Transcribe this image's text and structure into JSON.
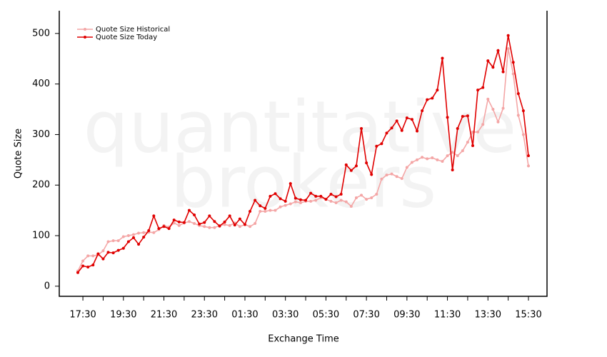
{
  "chart_data": {
    "type": "line",
    "watermark": [
      "quantitative",
      "brokers"
    ],
    "x_label": "Exchange Time",
    "y_label": "Quote Size",
    "categories": [
      null,
      "17:30",
      null,
      null,
      null,
      null,
      null,
      null,
      null,
      "19:30",
      null,
      null,
      null,
      null,
      null,
      null,
      null,
      "21:30",
      null,
      null,
      null,
      null,
      null,
      null,
      null,
      "23:30",
      null,
      null,
      null,
      null,
      null,
      null,
      null,
      "01:30",
      null,
      null,
      null,
      null,
      null,
      null,
      null,
      "03:30",
      null,
      null,
      null,
      null,
      null,
      null,
      null,
      "05:30",
      null,
      null,
      null,
      null,
      null,
      null,
      null,
      "07:30",
      null,
      null,
      null,
      null,
      null,
      null,
      null,
      "09:30",
      null,
      null,
      null,
      null,
      null,
      null,
      null,
      "11:30",
      null,
      null,
      null,
      null,
      null,
      null,
      null,
      "13:30",
      null,
      null,
      null,
      null,
      null,
      null,
      null,
      "15:30"
    ],
    "series": [
      {
        "name": "Quote Size Historical",
        "color": "#f4a6a6",
        "values": [
          30,
          50,
          60,
          60,
          62,
          70,
          88,
          90,
          90,
          98,
          100,
          102,
          105,
          106,
          107,
          106,
          112,
          120,
          117,
          125,
          120,
          125,
          128,
          124,
          120,
          118,
          116,
          116,
          120,
          122,
          120,
          125,
          118,
          122,
          118,
          124,
          148,
          148,
          150,
          150,
          157,
          160,
          163,
          167,
          165,
          168,
          168,
          170,
          175,
          172,
          168,
          165,
          170,
          167,
          158,
          175,
          180,
          172,
          175,
          182,
          212,
          220,
          222,
          217,
          213,
          235,
          245,
          250,
          255,
          252,
          254,
          250,
          247,
          258,
          265,
          258,
          268,
          285,
          305,
          305,
          320,
          370,
          350,
          325,
          352,
          470,
          420,
          338,
          300,
          238
        ]
      },
      {
        "name": "Quote Size Today",
        "color": "#e00000",
        "values": [
          27,
          40,
          38,
          42,
          64,
          54,
          67,
          66,
          71,
          75,
          88,
          96,
          83,
          97,
          110,
          139,
          114,
          118,
          114,
          131,
          127,
          126,
          150,
          141,
          123,
          126,
          139,
          128,
          119,
          127,
          139,
          121,
          133,
          122,
          148,
          170,
          159,
          154,
          178,
          183,
          173,
          168,
          203,
          174,
          171,
          170,
          184,
          178,
          178,
          172,
          182,
          177,
          182,
          240,
          229,
          238,
          312,
          244,
          221,
          277,
          282,
          303,
          313,
          327,
          308,
          333,
          330,
          307,
          347,
          369,
          372,
          388,
          451,
          334,
          230,
          312,
          336,
          337,
          278,
          388,
          393,
          446,
          433,
          466,
          424,
          496,
          443,
          381,
          347,
          258
        ]
      }
    ],
    "ylim": [
      -20,
      545
    ],
    "yticks": [
      0,
      100,
      200,
      300,
      400,
      500
    ],
    "legend": "top-left"
  }
}
